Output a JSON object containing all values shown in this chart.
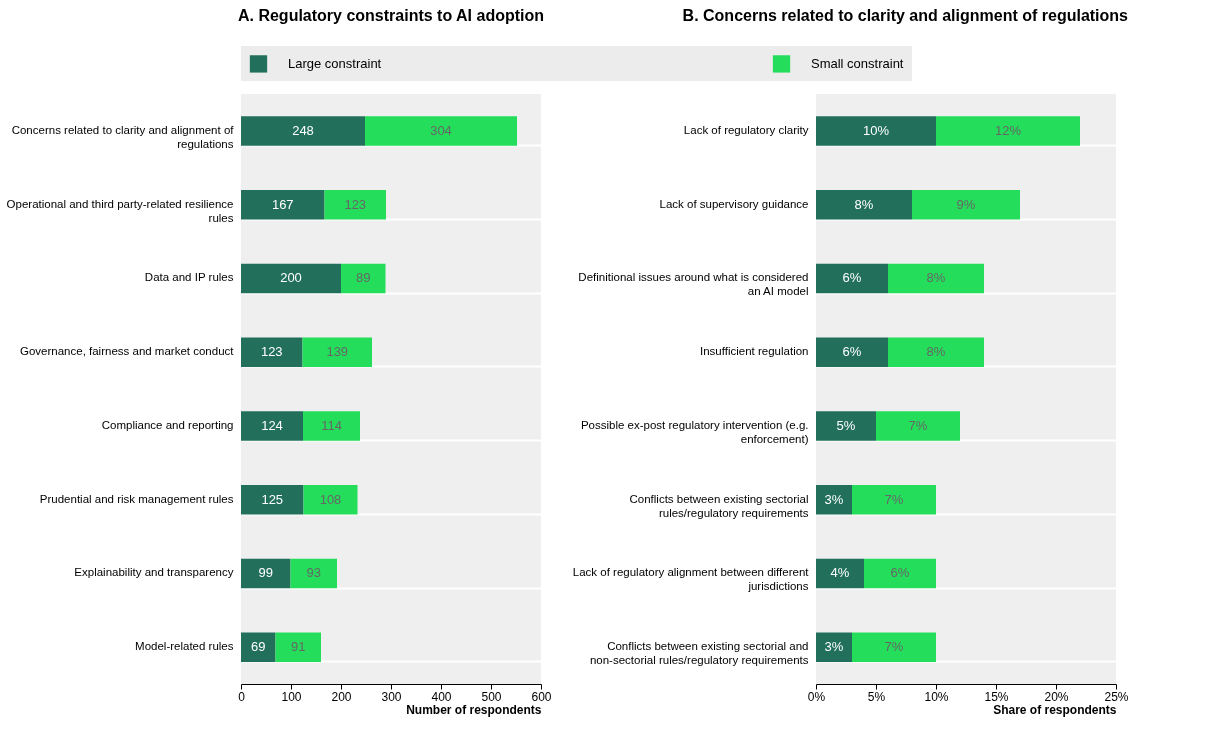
{
  "chart_data": [
    {
      "type": "bar",
      "orientation": "horizontal",
      "stacked": true,
      "title": "A. Regulatory constraints to AI adoption",
      "xlabel": "Number of respondents",
      "categories": [
        "Concerns related to clarity and alignment of regulations",
        "Operational and third party-related resilience rules",
        "Data and IP rules",
        "Governance, fairness and market conduct",
        "Compliance and reporting",
        "Prudential and risk management rules",
        "Explainability and transparency",
        "Model-related rules"
      ],
      "series": [
        {
          "name": "Large constraint",
          "color": "#22705c",
          "values": [
            248,
            167,
            200,
            123,
            124,
            125,
            99,
            69
          ]
        },
        {
          "name": "Small constraint",
          "color": "#24de5b",
          "values": [
            304,
            123,
            89,
            139,
            114,
            108,
            93,
            91
          ]
        }
      ],
      "xlim": [
        0,
        600
      ],
      "xticks": [
        0,
        100,
        200,
        300,
        400,
        500,
        600
      ],
      "data_labels": true,
      "grid": "y",
      "legend": "top"
    },
    {
      "type": "bar",
      "orientation": "horizontal",
      "stacked": true,
      "title": "B. Concerns related to clarity and alignment of regulations",
      "xlabel": "Share of respondents",
      "categories": [
        "Lack of regulatory clarity",
        "Lack of supervisory guidance",
        "Definitional issues around what is considered an AI model",
        "Insufficient regulation",
        "Possible ex-post regulatory intervention (e.g. enforcement)",
        "Conflicts between existing sectorial rules/regulatory requirements",
        "Lack of regulatory alignment between different jurisdictions",
        "Conflicts between existing sectorial and non-sectorial rules/regulatory requirements"
      ],
      "series": [
        {
          "name": "Large constraint",
          "color": "#22705c",
          "values": [
            10,
            8,
            6,
            6,
            5,
            3,
            4,
            3
          ],
          "value_labels": [
            "10%",
            "8%",
            "6%",
            "6%",
            "5%",
            "3%",
            "4%",
            "3%"
          ]
        },
        {
          "name": "Small constraint",
          "color": "#24de5b",
          "values": [
            12,
            9,
            8,
            8,
            7,
            7,
            6,
            7
          ],
          "value_labels": [
            "12%",
            "9%",
            "8%",
            "8%",
            "7%",
            "7%",
            "6%",
            "7%"
          ]
        }
      ],
      "xlim": [
        0,
        25
      ],
      "xticks": [
        {
          "value": 0,
          "label": "0%"
        },
        {
          "value": 5,
          "label": "5%"
        },
        {
          "value": 10,
          "label": "10%"
        },
        {
          "value": 15,
          "label": "15%"
        },
        {
          "value": 20,
          "label": "20%"
        },
        {
          "value": 25,
          "label": "25%"
        }
      ],
      "grid": "y",
      "legend": "top"
    }
  ]
}
